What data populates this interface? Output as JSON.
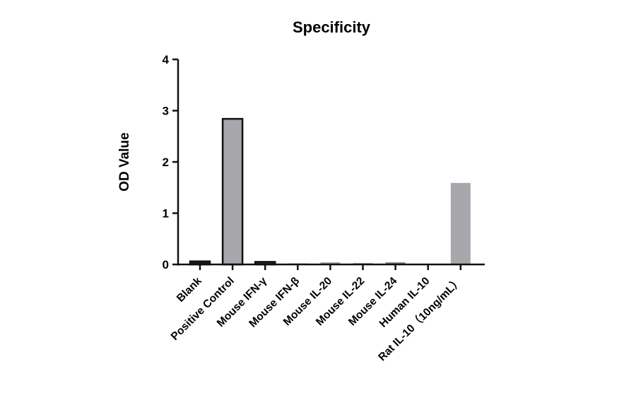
{
  "chart_data": {
    "type": "bar",
    "title": "Specificity",
    "xlabel": "",
    "ylabel": "OD Value",
    "ylim": [
      0,
      4
    ],
    "yticks": [
      0,
      1,
      2,
      3,
      4
    ],
    "grid": false,
    "categories": [
      "Blank",
      "Positive Control",
      "Mouse IFN-γ",
      "Mouse IFN-β",
      "Mouse IL-20",
      "Mouse IL-22",
      "Mouse IL-24",
      "Human IL-10",
      "Rat IL-10（10ng/mL）"
    ],
    "values": [
      0.06,
      2.84,
      0.05,
      0.02,
      0.04,
      0.03,
      0.04,
      0.01,
      1.59
    ],
    "colors": [
      "#1a1a1a",
      "#a7a7ab",
      "#2a2a2a",
      "#8a8a8a",
      "#9a9a9a",
      "#b0b0b0",
      "#7a7a7a",
      "#cccccc",
      "#a7a7ab"
    ],
    "outlined": [
      true,
      true,
      true,
      false,
      false,
      false,
      false,
      false,
      false
    ]
  }
}
